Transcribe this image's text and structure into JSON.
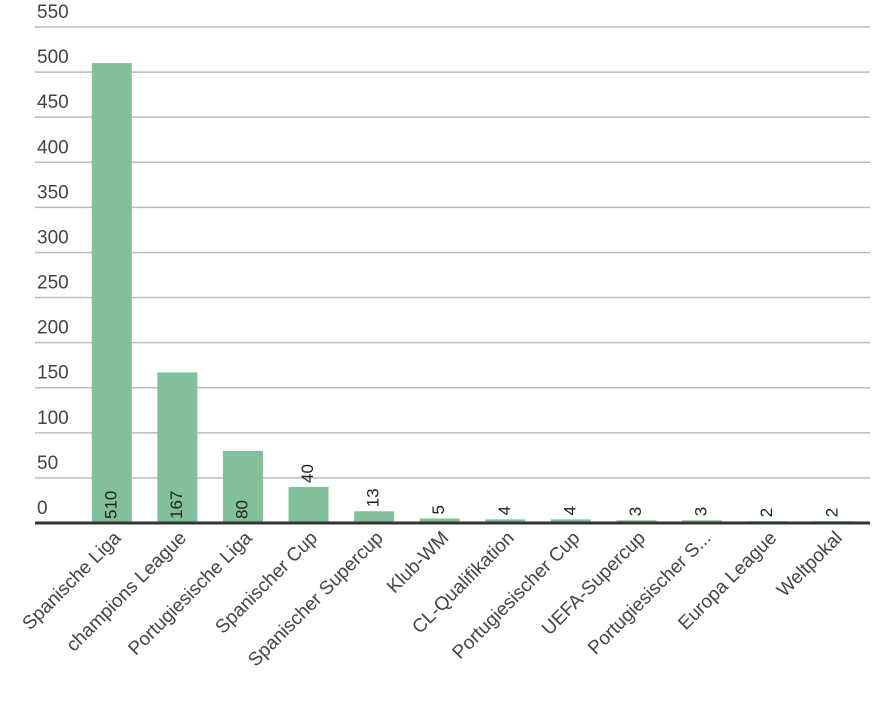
{
  "chart_data": {
    "type": "bar",
    "categories": [
      "Spanische Liga",
      "champions League",
      "Portugiesische Liga",
      "Spanischer Cup",
      "Spanischer Supercup",
      "Klub-WM",
      "CL-Qualifikation",
      "Portugiesischer Cup",
      "UEFA-Supercup",
      "Portugiesischer S...",
      "Europa League",
      "Weltpokal"
    ],
    "values": [
      510,
      167,
      80,
      40,
      13,
      5,
      4,
      4,
      3,
      3,
      2,
      2
    ],
    "color": "#82bf9b",
    "ylim": [
      0,
      550
    ],
    "yticks": [
      0,
      50,
      100,
      150,
      200,
      250,
      300,
      350,
      400,
      450,
      500,
      550
    ],
    "grid": true
  }
}
